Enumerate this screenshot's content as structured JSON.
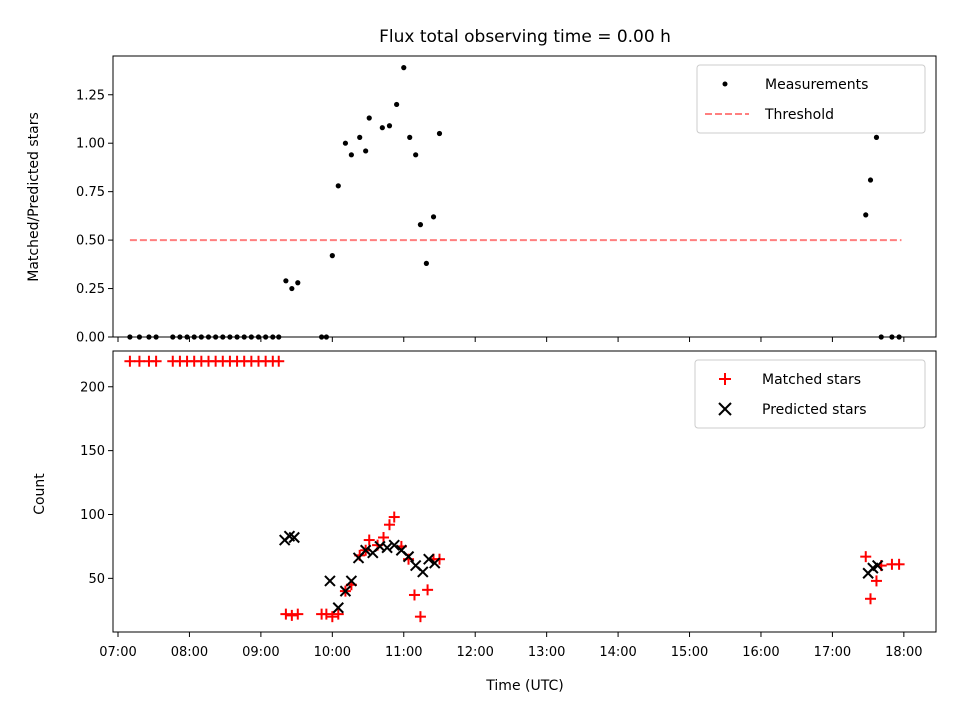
{
  "title": "Flux total observing time = 0.00 h",
  "x_axis": {
    "label": "Time (UTC)",
    "ticks": [
      "07:00",
      "08:00",
      "09:00",
      "10:00",
      "11:00",
      "12:00",
      "13:00",
      "14:00",
      "15:00",
      "16:00",
      "17:00",
      "18:00"
    ],
    "range_hours": [
      6.93,
      18.45
    ]
  },
  "colors": {
    "measurements": "#000000",
    "threshold": "#ff7f7f",
    "matched": "#ff0000",
    "predicted": "#000000"
  },
  "chart_data": [
    {
      "type": "scatter",
      "ylabel": "Matched/Predicted stars",
      "ylim": [
        0,
        1.45
      ],
      "yticks": [
        "0.00",
        "0.25",
        "0.50",
        "0.75",
        "1.00",
        "1.25"
      ],
      "legend_position": "top-right",
      "series": [
        {
          "name": "Measurements",
          "x": [
            "07:10",
            "07:18",
            "07:26",
            "07:32",
            "07:46",
            "07:52",
            "07:58",
            "08:04",
            "08:10",
            "08:16",
            "08:22",
            "08:28",
            "08:34",
            "08:40",
            "08:46",
            "08:52",
            "08:58",
            "09:04",
            "09:10",
            "09:15",
            "09:21",
            "09:26",
            "09:31",
            "09:51",
            "09:55",
            "10:00",
            "10:05",
            "10:11",
            "10:16",
            "10:23",
            "10:28",
            "10:31",
            "10:42",
            "10:48",
            "10:54",
            "11:00",
            "11:05",
            "11:10",
            "11:14",
            "11:19",
            "11:25",
            "11:30",
            "17:28",
            "17:32",
            "17:37",
            "17:41",
            "17:50",
            "17:56"
          ],
          "y": [
            0,
            0,
            0,
            0,
            0,
            0,
            0,
            0,
            0,
            0,
            0,
            0,
            0,
            0,
            0,
            0,
            0,
            0,
            0,
            0,
            0.29,
            0.25,
            0.28,
            0,
            0,
            0.42,
            0.78,
            1.0,
            0.94,
            1.03,
            0.96,
            1.13,
            1.08,
            1.09,
            1.2,
            1.39,
            1.03,
            0.94,
            0.58,
            0.38,
            0.62,
            1.05,
            0.63,
            0.81,
            1.03,
            0,
            0,
            0
          ]
        },
        {
          "name": "Threshold",
          "style": "dashed",
          "x": [
            "07:10",
            "17:58"
          ],
          "y": [
            0.5,
            0.5
          ]
        }
      ]
    },
    {
      "type": "scatter",
      "ylabel": "Count",
      "ylim": [
        8,
        228
      ],
      "yticks": [
        "50",
        "100",
        "150",
        "200"
      ],
      "legend_position": "top-right",
      "series": [
        {
          "name": "Matched stars",
          "marker": "+",
          "x": [
            "07:10",
            "07:18",
            "07:26",
            "07:32",
            "07:46",
            "07:52",
            "07:58",
            "08:04",
            "08:10",
            "08:16",
            "08:22",
            "08:28",
            "08:34",
            "08:40",
            "08:46",
            "08:52",
            "08:58",
            "09:04",
            "09:10",
            "09:15",
            "09:21",
            "09:26",
            "09:31",
            "09:51",
            "09:55",
            "10:00",
            "10:05",
            "10:11",
            "10:16",
            "10:23",
            "10:28",
            "10:31",
            "10:38",
            "10:43",
            "10:48",
            "10:52",
            "10:58",
            "11:04",
            "11:09",
            "11:14",
            "11:20",
            "11:25",
            "11:30",
            "17:28",
            "17:32",
            "17:37",
            "17:41",
            "17:50",
            "17:56"
          ],
          "y": [
            220,
            220,
            220,
            220,
            220,
            220,
            220,
            220,
            220,
            220,
            220,
            220,
            220,
            220,
            220,
            220,
            220,
            220,
            220,
            220,
            22,
            21,
            22,
            22,
            22,
            20,
            22,
            40,
            45,
            68,
            72,
            80,
            76,
            82,
            92,
            98,
            75,
            65,
            37,
            20,
            41,
            65,
            65,
            67,
            34,
            48,
            60,
            61,
            61
          ]
        },
        {
          "name": "Predicted stars",
          "marker": "x",
          "x": [
            "09:20",
            "09:24",
            "09:28",
            "09:58",
            "10:05",
            "10:11",
            "10:16",
            "10:22",
            "10:28",
            "10:34",
            "10:40",
            "10:46",
            "10:52",
            "10:58",
            "11:04",
            "11:10",
            "11:16",
            "11:21",
            "11:26",
            "17:30",
            "17:34",
            "17:38"
          ],
          "y": [
            80,
            83,
            82,
            48,
            27,
            40,
            48,
            66,
            72,
            70,
            75,
            74,
            76,
            72,
            67,
            60,
            55,
            65,
            62,
            54,
            58,
            60
          ]
        }
      ]
    }
  ]
}
